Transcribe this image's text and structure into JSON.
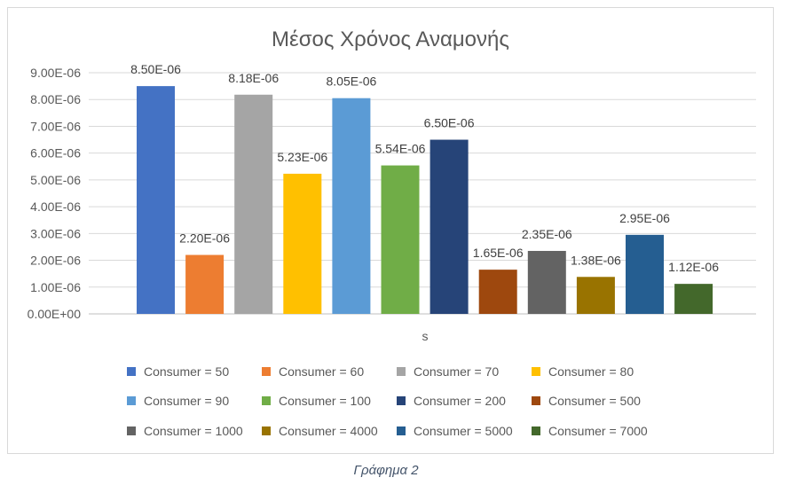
{
  "caption": "Γράφημα 2",
  "chart_data": {
    "type": "bar",
    "title": "Μέσος Χρόνος Αναμονής",
    "xlabel": "s",
    "ylabel": "",
    "ylim": [
      0,
      9e-06
    ],
    "yticks": [
      "0.00E+00",
      "1.00E-06",
      "2.00E-06",
      "3.00E-06",
      "4.00E-06",
      "5.00E-06",
      "6.00E-06",
      "7.00E-06",
      "8.00E-06",
      "9.00E-06"
    ],
    "grid": true,
    "legend_position": "bottom",
    "categories": [
      "s"
    ],
    "series": [
      {
        "name": "Consumer = 50",
        "values": [
          8.5e-06
        ],
        "label": "8.50E-06",
        "color": "#4472c4"
      },
      {
        "name": "Consumer = 60",
        "values": [
          2.2e-06
        ],
        "label": "2.20E-06",
        "color": "#ed7d31"
      },
      {
        "name": "Consumer = 70",
        "values": [
          8.18e-06
        ],
        "label": "8.18E-06",
        "color": "#a5a5a5"
      },
      {
        "name": "Consumer = 80",
        "values": [
          5.23e-06
        ],
        "label": "5.23E-06",
        "color": "#ffc000"
      },
      {
        "name": "Consumer = 90",
        "values": [
          8.05e-06
        ],
        "label": "8.05E-06",
        "color": "#5b9bd5"
      },
      {
        "name": "Consumer = 100",
        "values": [
          5.54e-06
        ],
        "label": "5.54E-06",
        "color": "#70ad47"
      },
      {
        "name": "Consumer = 200",
        "values": [
          6.5e-06
        ],
        "label": "6.50E-06",
        "color": "#264478"
      },
      {
        "name": "Consumer = 500",
        "values": [
          1.65e-06
        ],
        "label": "1.65E-06",
        "color": "#9e480e"
      },
      {
        "name": "Consumer = 1000",
        "values": [
          2.35e-06
        ],
        "label": "2.35E-06",
        "color": "#636363"
      },
      {
        "name": "Consumer = 4000",
        "values": [
          1.38e-06
        ],
        "label": "1.38E-06",
        "color": "#997300"
      },
      {
        "name": "Consumer = 5000",
        "values": [
          2.95e-06
        ],
        "label": "2.95E-06",
        "color": "#255e91"
      },
      {
        "name": "Consumer = 7000",
        "values": [
          1.12e-06
        ],
        "label": "1.12E-06",
        "color": "#43682b"
      }
    ]
  }
}
